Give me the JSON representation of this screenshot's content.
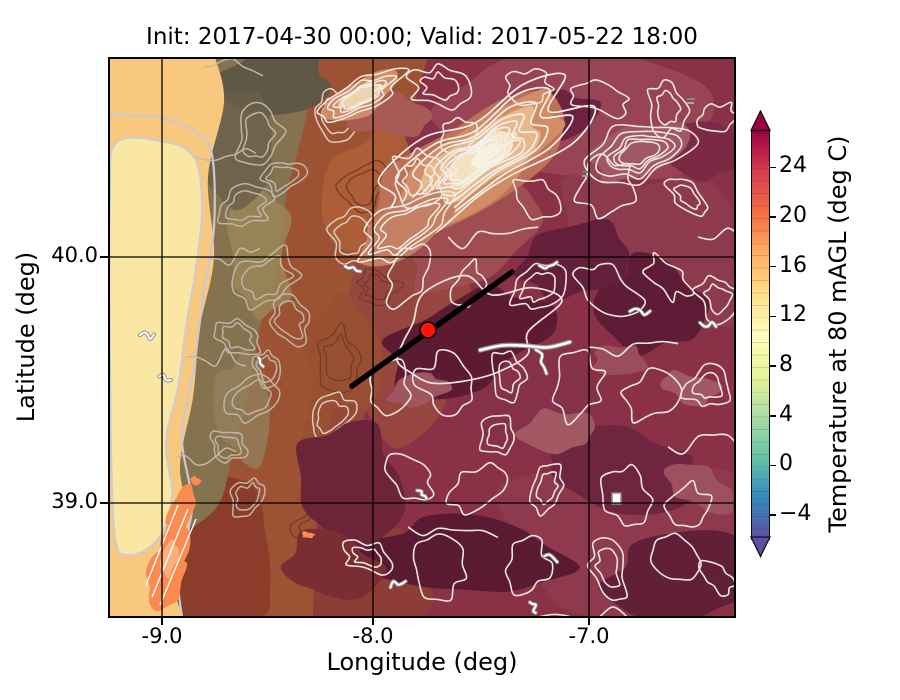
{
  "title": "Init: 2017-04-30 00:00; Valid: 2017-05-22 18:00",
  "axes": {
    "xlabel": "Longitude (deg)",
    "ylabel": "Latitude (deg)",
    "xtick_labels": [
      "-9.0",
      "-8.0",
      "-7.0"
    ],
    "ytick_labels": [
      "40.0",
      "39.0"
    ]
  },
  "colorbar": {
    "label": "Temperature at 80 mAGL (deg C)",
    "tick_labels": [
      "24",
      "20",
      "16",
      "12",
      "8",
      "4",
      "0",
      "−4"
    ],
    "tick_values": [
      24,
      20,
      16,
      12,
      8,
      4,
      0,
      -4
    ],
    "vmin": -6,
    "vmax": 27,
    "extend": "both",
    "colormap": "Spectral_r",
    "gradient": [
      [
        "0%",
        "#9e0142"
      ],
      [
        "10%",
        "#d53e4f"
      ],
      [
        "20%",
        "#f46d43"
      ],
      [
        "30%",
        "#fdae61"
      ],
      [
        "40%",
        "#fee08b"
      ],
      [
        "50%",
        "#fffdbf"
      ],
      [
        "60%",
        "#e6f598"
      ],
      [
        "70%",
        "#abdda4"
      ],
      [
        "80%",
        "#66c2a5"
      ],
      [
        "90%",
        "#3288bd"
      ],
      [
        "100%",
        "#5e4fa2"
      ]
    ]
  },
  "colors": {
    "ocean": "#f8c87e",
    "ocean_cool": "#fbe7a4",
    "olive_land": "#857350",
    "rust_land": "#9d5233",
    "brick_land": "#8c3c2a",
    "warm_red": "#8a3147",
    "dark_maroon": "#5c1b33",
    "mountain_cream": "#f2e3c2",
    "valley_orange": "#fb8a50",
    "marker_red": "#ff1505",
    "contour_white": "#ece7e1",
    "grid_black": "#000000"
  },
  "chart_data": {
    "type": "filled_contour_map",
    "title": "Init: 2017-04-30 00:00; Valid: 2017-05-22 18:00",
    "xlabel": "Longitude (deg)",
    "ylabel": "Latitude (deg)",
    "xlim": [
      -9.25,
      -6.3
    ],
    "ylim": [
      38.53,
      40.81
    ],
    "xticks": [
      -9.0,
      -8.0,
      -7.0
    ],
    "yticks": [
      40.0,
      39.0
    ],
    "grid": true,
    "field": "Temperature at 80 mAGL (deg C)",
    "field_levels_degC": [
      -6,
      27
    ],
    "level_step_degC": 1,
    "colormap": "Spectral_r",
    "colorbar_ticks": [
      24,
      20,
      16,
      12,
      8,
      4,
      0,
      -4
    ],
    "marker": {
      "type": "point",
      "lon": -7.75,
      "lat": 39.7,
      "color": "#ff1505"
    },
    "cross_section_line": {
      "from": {
        "lon": -8.1,
        "lat": 39.47
      },
      "to": {
        "lon": -7.35,
        "lat": 39.93
      },
      "color": "#000000"
    },
    "features": [
      "Atlantic ocean on west edge ~14-18 C (pale orange with cooler pale-yellow coastal pool)",
      "olive-brown coastal band with gray elevation contours",
      "interior plateau mostly 23-27 C (dark red to maroon, white elevation contours)",
      "cooler NE-SW mountain ridge (Serra da Estrela) ~10-14 C cream/salmon core",
      "warm orange valley streak ~20 C near bottom-left (Tagus valley)",
      "small white/gray river and reservoir features scattered over map"
    ]
  }
}
